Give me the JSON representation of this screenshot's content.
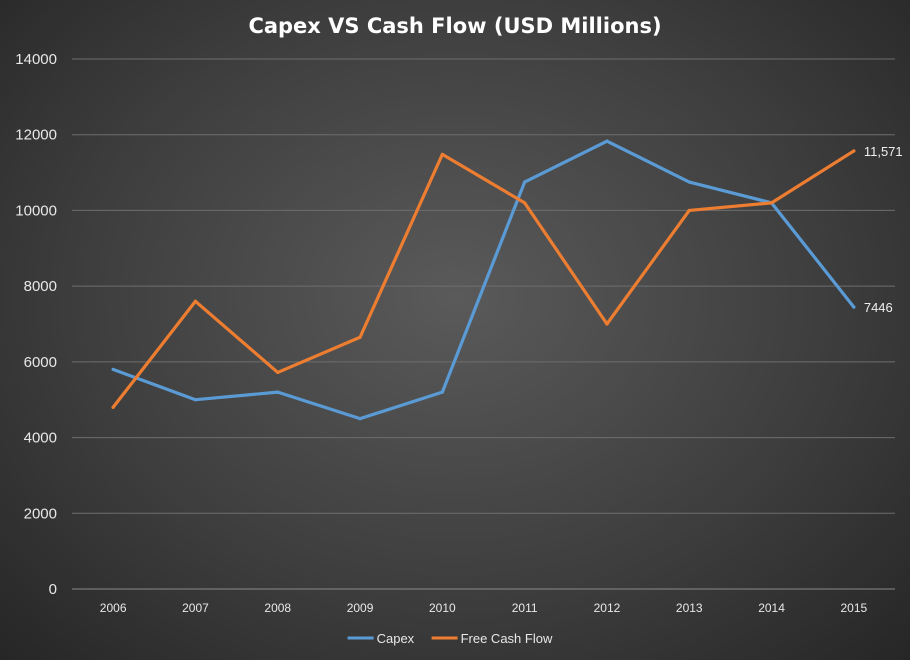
{
  "chart_data": {
    "type": "line",
    "title": "Capex VS Cash Flow (USD Millions)",
    "categories": [
      "2006",
      "2007",
      "2008",
      "2009",
      "2010",
      "2011",
      "2012",
      "2013",
      "2014",
      "2015"
    ],
    "ylim": [
      0,
      14000
    ],
    "yticks": [
      0,
      2000,
      4000,
      6000,
      8000,
      10000,
      12000,
      14000
    ],
    "ytick_labels": [
      "0",
      "2000",
      "4000",
      "6000",
      "8000",
      "10000",
      "12000",
      "14000"
    ],
    "grid": true,
    "legend_position": "bottom",
    "series": [
      {
        "name": "Capex",
        "color": "#5b9bd5",
        "values": [
          5800,
          5000,
          5200,
          4500,
          5200,
          10750,
          11830,
          10750,
          10200,
          7446
        ],
        "end_label": "7446"
      },
      {
        "name": "Free Cash Flow",
        "color": "#ed7d31",
        "values": [
          4800,
          7600,
          5720,
          6650,
          11480,
          10200,
          7000,
          10000,
          10200,
          11571
        ],
        "end_label": "11,571"
      }
    ]
  }
}
